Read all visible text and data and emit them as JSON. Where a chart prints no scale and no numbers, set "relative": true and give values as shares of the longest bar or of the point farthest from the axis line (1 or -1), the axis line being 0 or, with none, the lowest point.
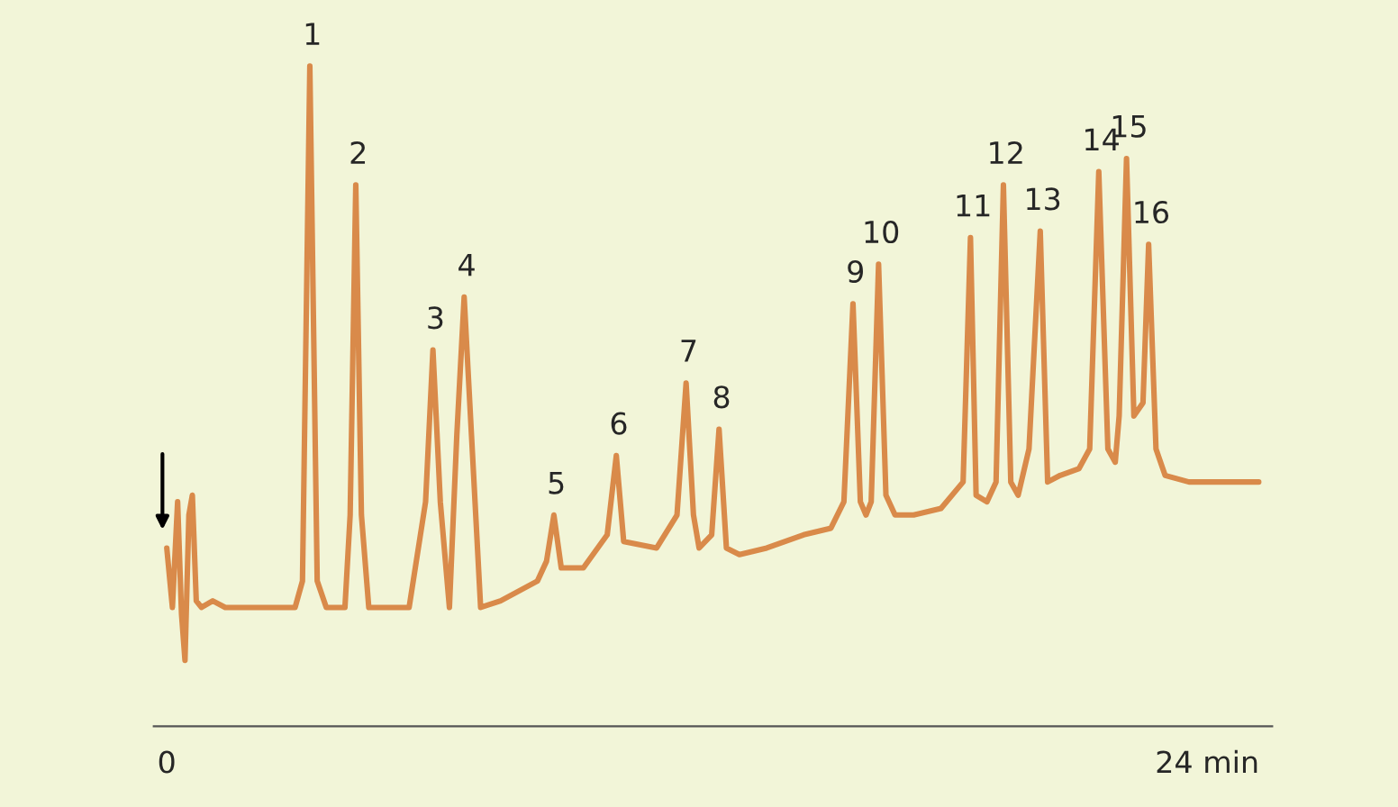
{
  "chart_data": {
    "type": "line",
    "relative": true,
    "x": [
      0,
      0.13,
      0.25,
      0.34,
      0.42,
      0.51,
      0.59,
      0.68,
      0.8,
      1.06,
      1.35,
      1.78,
      2.41,
      2.96,
      3.13,
      3.3,
      3.47,
      3.68,
      4.11,
      4.23,
      4.36,
      4.49,
      4.66,
      5.59,
      5.97,
      6.14,
      6.31,
      6.52,
      6.69,
      6.86,
      7.03,
      7.24,
      7.7,
      8.55,
      8.76,
      8.93,
      9.1,
      9.61,
      10.16,
      10.37,
      10.54,
      11.3,
      11.77,
      11.98,
      12.15,
      12.28,
      12.57,
      12.74,
      12.91,
      13.21,
      13.84,
      14.69,
      15.32,
      15.62,
      15.83,
      16.0,
      16.13,
      16.25,
      16.42,
      16.59,
      16.8,
      17.23,
      17.86,
      18.37,
      18.54,
      18.67,
      18.92,
      19.13,
      19.3,
      19.47,
      19.64,
      19.89,
      20.15,
      20.32,
      20.61,
      21.04,
      21.29,
      21.5,
      21.71,
      21.88,
      21.97,
      22.14,
      22.31,
      22.52,
      22.65,
      22.82,
      23.03,
      23.58,
      25.19
    ],
    "series": [
      {
        "color": "#d98a4a",
        "values": [
          0.27,
          0.18,
          0.34,
          0.17,
          0.1,
          0.32,
          0.35,
          0.19,
          0.18,
          0.19,
          0.18,
          0.18,
          0.18,
          0.18,
          0.22,
          1,
          0.22,
          0.18,
          0.18,
          0.32,
          0.82,
          0.32,
          0.18,
          0.18,
          0.34,
          0.57,
          0.34,
          0.18,
          0.44,
          0.65,
          0.44,
          0.18,
          0.19,
          0.22,
          0.25,
          0.32,
          0.24,
          0.24,
          0.29,
          0.41,
          0.28,
          0.27,
          0.32,
          0.52,
          0.32,
          0.27,
          0.29,
          0.45,
          0.27,
          0.26,
          0.27,
          0.29,
          0.3,
          0.34,
          0.64,
          0.34,
          0.32,
          0.34,
          0.7,
          0.35,
          0.32,
          0.32,
          0.33,
          0.37,
          0.74,
          0.35,
          0.34,
          0.37,
          0.82,
          0.37,
          0.35,
          0.42,
          0.75,
          0.37,
          0.38,
          0.39,
          0.42,
          0.84,
          0.42,
          0.4,
          0.47,
          0.86,
          0.47,
          0.49,
          0.73,
          0.42,
          0.38,
          0.37,
          0.37
        ]
      }
    ],
    "xlim": [
      -0.3,
      25.5
    ],
    "xticks": [
      0,
      {
        "value": 24,
        "label": "24 min"
      }
    ],
    "tick_labels": "x",
    "grid": false,
    "legend": false,
    "marker": "none",
    "line_style": "solid",
    "annotations": [
      {
        "text": "1",
        "x": 3.3,
        "y": 1
      },
      {
        "text": "2",
        "x": 4.36,
        "y": 0.82
      },
      {
        "text": "3",
        "x": 6.14,
        "y": 0.57
      },
      {
        "text": "4",
        "x": 6.86,
        "y": 0.65
      },
      {
        "text": "5",
        "x": 8.93,
        "y": 0.32
      },
      {
        "text": "6",
        "x": 10.37,
        "y": 0.41
      },
      {
        "text": "7",
        "x": 11.98,
        "y": 0.52
      },
      {
        "text": "8",
        "x": 12.74,
        "y": 0.45
      },
      {
        "text": "9",
        "x": 15.83,
        "y": 0.64
      },
      {
        "text": "10",
        "x": 16.42,
        "y": 0.7
      },
      {
        "text": "11",
        "x": 18.54,
        "y": 0.74
      },
      {
        "text": "12",
        "x": 19.3,
        "y": 0.82
      },
      {
        "text": "13",
        "x": 20.15,
        "y": 0.75
      },
      {
        "text": "14",
        "x": 21.5,
        "y": 0.84
      },
      {
        "text": "15",
        "x": 22.14,
        "y": 0.86
      },
      {
        "text": "16",
        "x": 22.65,
        "y": 0.73
      }
    ]
  }
}
